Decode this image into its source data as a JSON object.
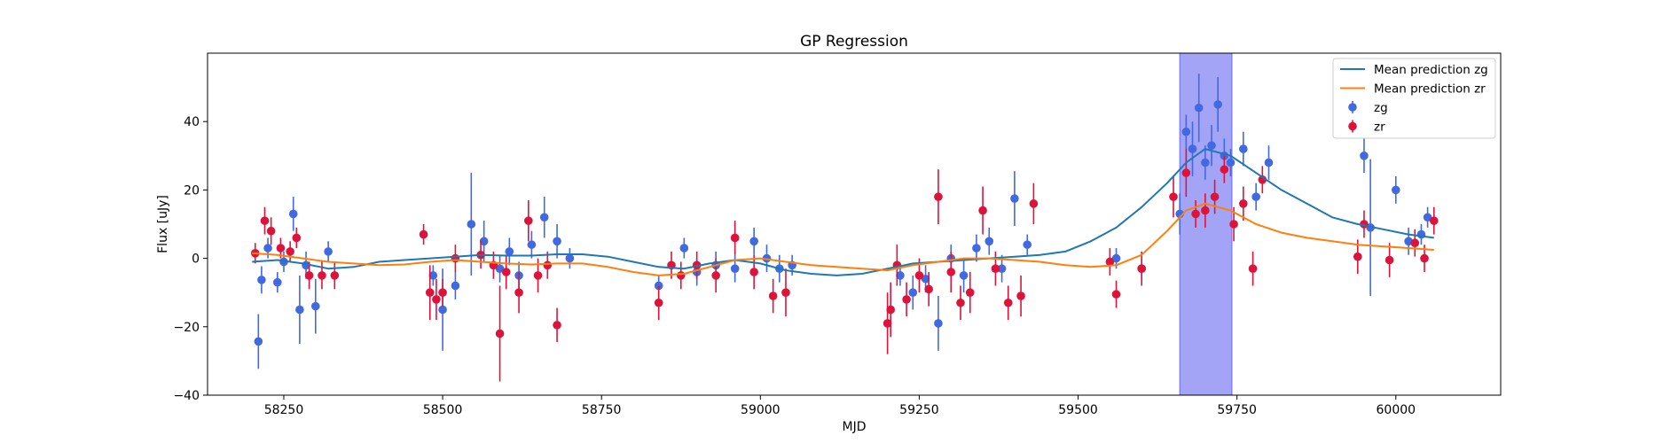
{
  "chart_data": {
    "type": "scatter",
    "title": "GP Regression",
    "xlabel": "MJD",
    "ylabel": "Flux [uJy]",
    "xlim": [
      58130,
      60165
    ],
    "ylim": [
      -40,
      60
    ],
    "xticks": [
      58250,
      58500,
      58750,
      59000,
      59250,
      59500,
      59750,
      60000
    ],
    "yticks": [
      -40,
      -20,
      0,
      20,
      40
    ],
    "grid": false,
    "legend_position": "top-right",
    "highlight_span": {
      "x_start": 59660,
      "x_end": 59742,
      "color": "#a4a4f7"
    },
    "lines": [
      {
        "name": "Mean prediction zg",
        "color": "#1f77b4",
        "x": [
          58200,
          58240,
          58280,
          58320,
          58360,
          58400,
          58440,
          58480,
          58520,
          58560,
          58600,
          58640,
          58680,
          58720,
          58760,
          58800,
          58840,
          58880,
          58920,
          58960,
          59000,
          59040,
          59080,
          59120,
          59160,
          59200,
          59240,
          59280,
          59320,
          59360,
          59400,
          59440,
          59480,
          59520,
          59560,
          59600,
          59640,
          59670,
          59700,
          59740,
          59780,
          59820,
          59860,
          59900,
          59940,
          59980,
          60020,
          60060
        ],
        "y": [
          -1,
          -0.5,
          -1.5,
          -3,
          -2.5,
          -1,
          -0.5,
          0,
          0.5,
          1,
          0.8,
          0.8,
          1.2,
          1.2,
          0.5,
          -1,
          -2.5,
          -3,
          -1.5,
          -0.5,
          -1.5,
          -3.5,
          -4.5,
          -5,
          -4.5,
          -3,
          -1.5,
          -1,
          -0.5,
          0,
          0.5,
          1,
          2,
          5,
          9,
          15,
          22,
          28,
          32,
          30,
          25,
          20,
          16,
          12,
          10,
          8.5,
          7,
          6
        ]
      },
      {
        "name": "Mean prediction zr",
        "color": "#ff7f0e",
        "x": [
          58200,
          58240,
          58280,
          58320,
          58360,
          58400,
          58440,
          58480,
          58520,
          58560,
          58600,
          58640,
          58680,
          58720,
          58760,
          58800,
          58840,
          58880,
          58920,
          58960,
          59000,
          59040,
          59080,
          59120,
          59160,
          59200,
          59240,
          59280,
          59320,
          59360,
          59400,
          59440,
          59480,
          59520,
          59560,
          59600,
          59640,
          59670,
          59700,
          59740,
          59780,
          59820,
          59860,
          59900,
          59940,
          59980,
          60020,
          60060
        ],
        "y": [
          1.5,
          1,
          0,
          -1,
          -1.5,
          -2,
          -1.8,
          -1,
          -0.5,
          -1,
          -1.5,
          -1.8,
          -1.5,
          -1.5,
          -2.5,
          -4,
          -5,
          -4.5,
          -2.5,
          -0.5,
          0,
          -1,
          -2,
          -2.5,
          -3,
          -3.5,
          -2,
          -1,
          0,
          0,
          -0.5,
          -1,
          -2,
          -2.5,
          -2,
          1,
          8,
          14,
          16,
          14,
          10,
          7.5,
          6,
          5,
          4,
          3.5,
          3,
          2.5
        ]
      }
    ],
    "series": [
      {
        "name": "zg",
        "color": "#4169e1",
        "x": [
          58210,
          58215,
          58225,
          58240,
          58250,
          58265,
          58275,
          58285,
          58300,
          58320,
          58485,
          58500,
          58520,
          58545,
          58565,
          58590,
          58605,
          58620,
          58640,
          58660,
          58680,
          58700,
          58840,
          58880,
          58900,
          58930,
          58960,
          58990,
          59010,
          59030,
          59050,
          59220,
          59240,
          59260,
          59280,
          59300,
          59320,
          59340,
          59360,
          59380,
          59400,
          59420,
          59560,
          59600,
          59660,
          59670,
          59680,
          59690,
          59700,
          59710,
          59720,
          59730,
          59740,
          59760,
          59780,
          59800,
          59950,
          59960,
          60000,
          60020,
          60040,
          60050
        ],
        "y": [
          -24.3,
          -6.3,
          3,
          -7,
          -1,
          13,
          -15,
          -2,
          -14,
          2,
          -5,
          -15,
          -8,
          10,
          5,
          -3,
          2,
          -5,
          4,
          12,
          5,
          0,
          -8,
          3,
          -4,
          -2,
          -3,
          5,
          0,
          -3,
          -2,
          -5,
          -10,
          -6,
          -19,
          0,
          -5,
          3,
          5,
          -3,
          17.5,
          4,
          0,
          -3,
          13,
          37,
          32,
          44,
          28,
          33,
          45,
          30,
          28,
          32,
          18,
          28,
          30,
          9,
          20,
          5,
          7,
          12
        ],
        "err": [
          8,
          4,
          3,
          3,
          3,
          5,
          10,
          4,
          8,
          3,
          3,
          12,
          4,
          15,
          6,
          4,
          4,
          4,
          4,
          6,
          5,
          3,
          3,
          3,
          4,
          4,
          4,
          4,
          4,
          4,
          3,
          3,
          5,
          4,
          8,
          4,
          5,
          4,
          4,
          4,
          8,
          3,
          3,
          3,
          6,
          5,
          8,
          10,
          5,
          6,
          8,
          5,
          4,
          5,
          4,
          5,
          5,
          20,
          4,
          4,
          3,
          3
        ]
      },
      {
        "name": "zr",
        "color": "#dc143c",
        "x": [
          58205,
          58220,
          58230,
          58245,
          58260,
          58270,
          58290,
          58310,
          58330,
          58470,
          58480,
          58490,
          58500,
          58520,
          58560,
          58580,
          58590,
          58600,
          58620,
          58635,
          58650,
          58665,
          58680,
          58840,
          58860,
          58875,
          58900,
          58930,
          58960,
          58990,
          59020,
          59040,
          59200,
          59205,
          59215,
          59230,
          59250,
          59265,
          59280,
          59300,
          59315,
          59330,
          59350,
          59370,
          59390,
          59410,
          59430,
          59550,
          59560,
          59600,
          59650,
          59670,
          59685,
          59700,
          59715,
          59730,
          59745,
          59760,
          59775,
          59790,
          59940,
          59950,
          59990,
          60030,
          60045,
          60060
        ],
        "y": [
          1.5,
          11,
          8,
          3,
          2,
          6,
          -5,
          -5,
          -5,
          7,
          -10,
          -12,
          -10,
          0,
          1,
          -2,
          -22,
          -4,
          -10,
          11,
          -5,
          -2,
          -19.5,
          -13,
          -2,
          -5,
          -2,
          -5,
          6,
          -4,
          -11,
          -10,
          -19,
          -15,
          -2,
          -12,
          -5,
          -9,
          18,
          -4,
          -13,
          -10,
          14,
          -3,
          -13,
          -11,
          16,
          -1,
          -10.5,
          -3,
          18,
          25,
          13,
          14,
          18,
          26,
          10,
          16,
          -3,
          23,
          0.5,
          10,
          -0.5,
          4.5,
          0,
          11
        ],
        "err": [
          3,
          4,
          4,
          3,
          3,
          3,
          4,
          4,
          4,
          3,
          8,
          6,
          4,
          4,
          4,
          4,
          14,
          5,
          6,
          6,
          5,
          4,
          5,
          5,
          4,
          4,
          4,
          5,
          5,
          5,
          5,
          7,
          9,
          8,
          6,
          5,
          5,
          5,
          8,
          6,
          5,
          6,
          7,
          5,
          5,
          6,
          6,
          4,
          4,
          5,
          6,
          7,
          4,
          5,
          5,
          4,
          5,
          5,
          5,
          4,
          5,
          4,
          5,
          4,
          4,
          4
        ]
      }
    ],
    "legend": [
      {
        "label": "Mean prediction zg",
        "kind": "line",
        "color": "#1f77b4"
      },
      {
        "label": "Mean prediction zr",
        "kind": "line",
        "color": "#ff7f0e"
      },
      {
        "label": "zg",
        "kind": "errorbar",
        "color": "#4169e1"
      },
      {
        "label": "zr",
        "kind": "errorbar",
        "color": "#dc143c"
      }
    ]
  }
}
